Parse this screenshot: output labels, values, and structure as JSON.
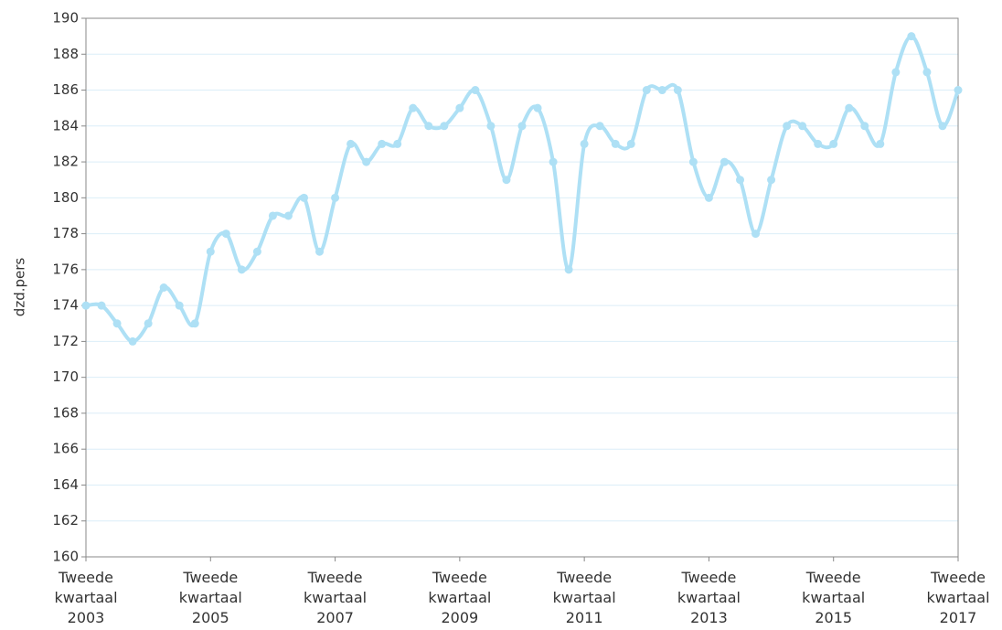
{
  "chart_data": {
    "type": "line",
    "y_label": "dzd.pers",
    "categories": [
      "Tweede kwartaal 2003",
      null,
      null,
      null,
      null,
      null,
      null,
      null,
      "Tweede kwartaal 2005",
      null,
      null,
      null,
      null,
      null,
      null,
      null,
      "Tweede kwartaal 2007",
      null,
      null,
      null,
      null,
      null,
      null,
      null,
      "Tweede kwartaal 2009",
      null,
      null,
      null,
      null,
      null,
      null,
      null,
      "Tweede kwartaal 2011",
      null,
      null,
      null,
      null,
      null,
      null,
      null,
      "Tweede kwartaal 2013",
      null,
      null,
      null,
      null,
      null,
      null,
      null,
      "Tweede kwartaal 2015",
      null,
      null,
      null,
      null,
      null,
      null,
      null,
      "Tweede kwartaal 2017"
    ],
    "values": [
      174,
      174,
      173,
      172,
      173,
      175,
      174,
      173,
      177,
      178,
      176,
      177,
      179,
      179,
      180,
      177,
      180,
      183,
      182,
      183,
      183,
      185,
      184,
      184,
      185,
      186,
      184,
      181,
      184,
      185,
      182,
      176,
      183,
      184,
      183,
      183,
      186,
      186,
      186,
      182,
      180,
      182,
      181,
      178,
      181,
      184,
      184,
      183,
      183,
      185,
      184,
      183,
      187,
      189,
      187,
      184,
      186
    ],
    "color": "#aee0f5",
    "ylim": [
      160,
      190
    ],
    "yticks": [
      160,
      162,
      164,
      166,
      168,
      170,
      172,
      174,
      176,
      178,
      180,
      182,
      184,
      186,
      188,
      190
    ],
    "grid": true
  }
}
